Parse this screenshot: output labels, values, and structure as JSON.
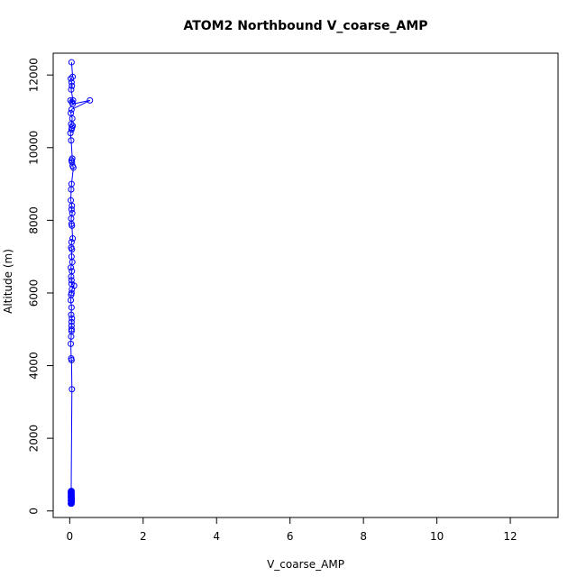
{
  "chart_data": {
    "type": "line",
    "title": "ATOM2 Northbound V_coarse_AMP",
    "xlabel": "V_coarse_AMP",
    "ylabel": "Altitude (m)",
    "xlim": [
      -0.45,
      13.3
    ],
    "ylim": [
      -180,
      12600
    ],
    "x_ticks": [
      0,
      2,
      4,
      6,
      8,
      10,
      12
    ],
    "y_ticks": [
      0,
      2000,
      4000,
      6000,
      8000,
      10000,
      12000
    ],
    "grid": false,
    "legend": "none",
    "line_color": "#0000ff",
    "marker": "open-circle",
    "series": [
      {
        "x": [
          0.05,
          0.08,
          0.03,
          0.05,
          0.06,
          0.04,
          0.09,
          0.02,
          0.06,
          0.08,
          0.55,
          0.05,
          0.03,
          0.07,
          0.04,
          0.08,
          0.06,
          0.05,
          0.02,
          0.04,
          0.07,
          0.05,
          0.06,
          0.08,
          0.1,
          0.05,
          0.04,
          0.03,
          0.06,
          0.05,
          0.07,
          0.04,
          0.05,
          0.06,
          0.08,
          0.05,
          0.04,
          0.06,
          0.05,
          0.07,
          0.03,
          0.06,
          0.04,
          0.05,
          0.05,
          0.12,
          0.06,
          0.05,
          0.04,
          0.03,
          0.05,
          0.04,
          0.06,
          0.05,
          0.05,
          0.05,
          0.05,
          0.04,
          0.03,
          0.04,
          0.05,
          0.06,
          0.04,
          0.05,
          0.05,
          0.05,
          0.03,
          0.05,
          0.04,
          0.04,
          0.05,
          0.04,
          0.05,
          0.05,
          0.04,
          0.03,
          0.04,
          0.05,
          0.04,
          0.05,
          0.04,
          0.05,
          0.04,
          0.03,
          0.05,
          0.04,
          0.04,
          0.05,
          0.04,
          0.03,
          0.05,
          0.04,
          0.05,
          0.04,
          0.04,
          0.03,
          0.04,
          0.05,
          0.04,
          0.03,
          0.04,
          0.05
        ],
        "y": [
          12350,
          11950,
          11900,
          11800,
          11700,
          11600,
          11300,
          11300,
          11250,
          11200,
          11300,
          11050,
          10950,
          10800,
          10650,
          10600,
          10550,
          10500,
          10400,
          10200,
          9700,
          9650,
          9600,
          9500,
          9450,
          9000,
          8850,
          8550,
          8400,
          8300,
          8200,
          8050,
          7900,
          7850,
          7500,
          7400,
          7250,
          7200,
          7000,
          6850,
          6700,
          6600,
          6450,
          6350,
          6250,
          6200,
          6100,
          6000,
          5950,
          5800,
          5600,
          5400,
          5300,
          5200,
          5100,
          5000,
          4950,
          4800,
          4600,
          4200,
          4150,
          3350,
          550,
          350,
          300,
          250,
          200,
          200,
          220,
          230,
          240,
          250,
          260,
          270,
          280,
          290,
          300,
          310,
          320,
          330,
          340,
          350,
          360,
          370,
          380,
          390,
          400,
          410,
          420,
          430,
          440,
          450,
          460,
          470,
          480,
          490,
          500,
          510,
          520,
          530,
          540,
          550
        ]
      }
    ]
  }
}
